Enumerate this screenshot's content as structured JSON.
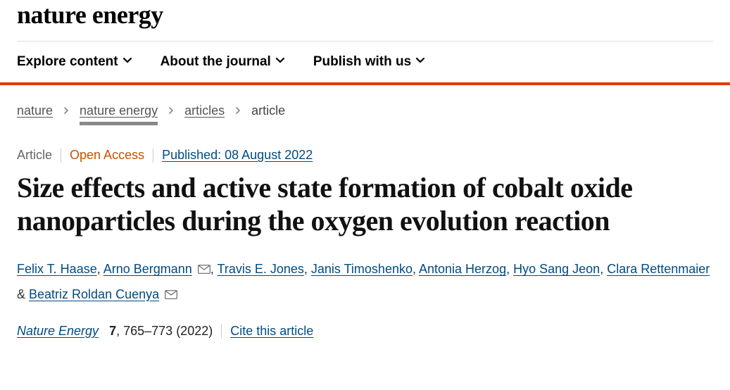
{
  "journal_name": "nature energy",
  "nav": {
    "items": [
      {
        "label": "Explore content"
      },
      {
        "label": "About the journal"
      },
      {
        "label": "Publish with us"
      }
    ]
  },
  "breadcrumbs": {
    "items": [
      {
        "label": "nature",
        "link": true
      },
      {
        "label": "nature energy",
        "link": true,
        "emphasized": true
      },
      {
        "label": "articles",
        "link": true
      },
      {
        "label": "article",
        "link": false
      }
    ]
  },
  "meta": {
    "article_label": "Article",
    "open_access": "Open Access",
    "published": "Published: 08 August 2022"
  },
  "title": "Size effects and active state formation of cobalt oxide nanoparticles during the oxygen evolution reaction",
  "authors": [
    {
      "name": "Felix T. Haase",
      "corresponding": false
    },
    {
      "name": "Arno Bergmann",
      "corresponding": true
    },
    {
      "name": "Travis E. Jones",
      "corresponding": false
    },
    {
      "name": "Janis Timoshenko",
      "corresponding": false
    },
    {
      "name": "Antonia Herzog",
      "corresponding": false
    },
    {
      "name": "Hyo Sang Jeon",
      "corresponding": false
    },
    {
      "name": "Clara Rettenmaier",
      "corresponding": false
    },
    {
      "name": "Beatriz Roldan Cuenya",
      "corresponding": true
    }
  ],
  "authors_amp": " & ",
  "authors_sep": ", ",
  "citation": {
    "journal": "Nature Energy",
    "volume": "7",
    "pages_year": ", 765–773 (2022)",
    "cite_label": "Cite this article"
  },
  "colors": {
    "accent": "#e63900",
    "link": "#004b83",
    "open_access": "#c65200"
  }
}
